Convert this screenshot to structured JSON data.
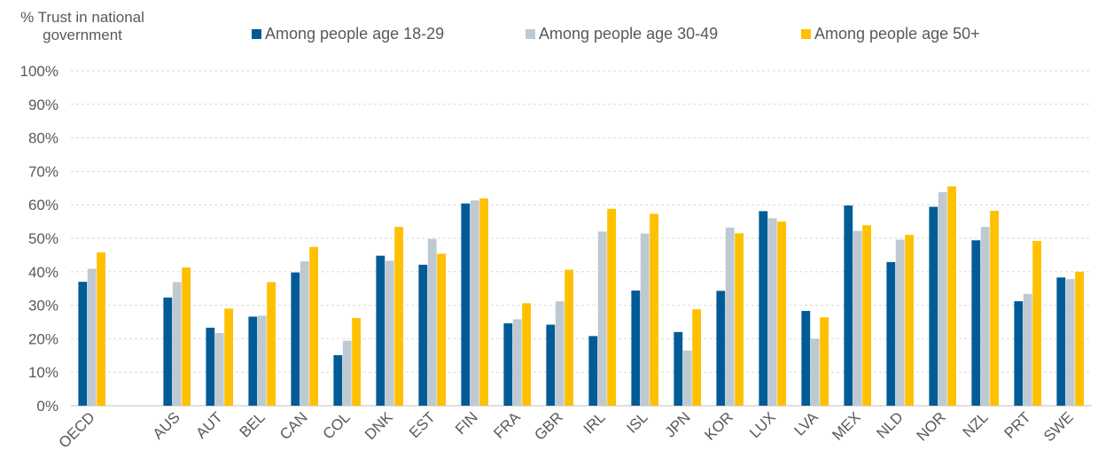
{
  "chart_data": {
    "type": "bar",
    "ylabel": "% Trust in national government",
    "ylabel_lines": [
      "% Trust in national",
      "government"
    ],
    "ylim": [
      0,
      100
    ],
    "yticks": [
      0,
      10,
      20,
      30,
      40,
      50,
      60,
      70,
      80,
      90,
      100
    ],
    "ytick_labels": [
      "0%",
      "10%",
      "20%",
      "30%",
      "40%",
      "50%",
      "60%",
      "70%",
      "80%",
      "90%",
      "100%"
    ],
    "grid": true,
    "legend_position": "top",
    "categories": [
      "OECD",
      "",
      "AUS",
      "AUT",
      "BEL",
      "CAN",
      "COL",
      "DNK",
      "EST",
      "FIN",
      "FRA",
      "GBR",
      "IRL",
      "ISL",
      "JPN",
      "KOR",
      "LUX",
      "LVA",
      "MEX",
      "NLD",
      "NOR",
      "NZL",
      "PRT",
      "SWE"
    ],
    "series": [
      {
        "name": "Among people age 18-29",
        "color": "#005b96",
        "values": [
          37.0,
          null,
          32.3,
          23.3,
          26.6,
          39.8,
          15.1,
          44.8,
          42.1,
          60.4,
          24.6,
          24.2,
          20.8,
          34.4,
          22.0,
          34.3,
          58.1,
          28.3,
          59.8,
          42.9,
          59.4,
          49.4,
          31.2,
          38.3
        ]
      },
      {
        "name": "Among people age 30-49",
        "color": "#bfc9d1",
        "values": [
          40.9,
          null,
          36.9,
          21.7,
          26.9,
          43.1,
          19.4,
          43.3,
          49.8,
          61.3,
          25.8,
          31.2,
          52.0,
          51.4,
          16.5,
          53.2,
          56.0,
          20.0,
          52.2,
          49.6,
          63.8,
          53.4,
          33.4,
          37.8
        ]
      },
      {
        "name": "Among people age 50+",
        "color": "#ffc000",
        "values": [
          45.8,
          null,
          41.3,
          29.0,
          36.9,
          47.4,
          26.2,
          53.4,
          45.4,
          61.9,
          30.6,
          40.6,
          58.8,
          57.3,
          28.8,
          51.5,
          55.0,
          26.4,
          53.9,
          51.0,
          65.5,
          58.2,
          49.2,
          40.0
        ]
      }
    ]
  }
}
